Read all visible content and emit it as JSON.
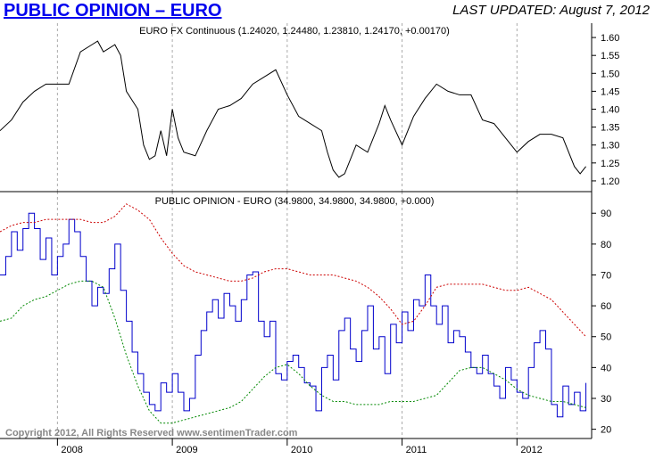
{
  "header": {
    "title": "PUBLIC OPINION – EURO",
    "last_updated": "LAST UPDATED:  August 7, 2012"
  },
  "footer": {
    "copyright": "Copyright 2012, All Rights Reserved  www.sentimenTrader.com"
  },
  "colors": {
    "price_line": "#000000",
    "opinion_line": "#0000cc",
    "upper_band": "#cc0000",
    "lower_band": "#008800",
    "grid": "#aaaaaa"
  },
  "chart_data": [
    {
      "type": "line",
      "title": "EURO FX Continuous (1.24020, 1.24480, 1.23810, 1.24170, +0.00170)",
      "ylim": [
        1.17,
        1.64
      ],
      "yticks": [
        "1.20",
        "1.25",
        "1.30",
        "1.35",
        "1.40",
        "1.45",
        "1.50",
        "1.55",
        "1.60"
      ],
      "xlim": [
        2007.5,
        2012.65
      ],
      "series": [
        {
          "x": [
            2007.5,
            2007.6,
            2007.7,
            2007.8,
            2007.9,
            2008.0,
            2008.1,
            2008.2,
            2008.3,
            2008.35,
            2008.4,
            2008.5,
            2008.55,
            2008.6,
            2008.7,
            2008.75,
            2008.8,
            2008.85,
            2008.9,
            2008.95,
            2009.0,
            2009.05,
            2009.1,
            2009.2,
            2009.3,
            2009.4,
            2009.5,
            2009.6,
            2009.7,
            2009.8,
            2009.9,
            2010.0,
            2010.1,
            2010.2,
            2010.3,
            2010.35,
            2010.4,
            2010.45,
            2010.5,
            2010.6,
            2010.7,
            2010.8,
            2010.85,
            2010.9,
            2011.0,
            2011.1,
            2011.2,
            2011.3,
            2011.4,
            2011.5,
            2011.6,
            2011.7,
            2011.8,
            2011.9,
            2012.0,
            2012.1,
            2012.2,
            2012.3,
            2012.4,
            2012.5,
            2012.55,
            2012.6
          ],
          "y": [
            1.34,
            1.37,
            1.42,
            1.45,
            1.47,
            1.47,
            1.47,
            1.56,
            1.58,
            1.59,
            1.56,
            1.58,
            1.55,
            1.45,
            1.4,
            1.3,
            1.26,
            1.27,
            1.34,
            1.27,
            1.4,
            1.32,
            1.28,
            1.27,
            1.34,
            1.4,
            1.41,
            1.43,
            1.47,
            1.49,
            1.51,
            1.44,
            1.38,
            1.36,
            1.34,
            1.28,
            1.23,
            1.21,
            1.22,
            1.3,
            1.28,
            1.36,
            1.41,
            1.37,
            1.3,
            1.38,
            1.43,
            1.47,
            1.45,
            1.44,
            1.44,
            1.37,
            1.36,
            1.32,
            1.28,
            1.31,
            1.33,
            1.33,
            1.32,
            1.24,
            1.22,
            1.24
          ]
        }
      ]
    },
    {
      "type": "line",
      "title": "PUBLIC OPINION - EURO (34.9800, 34.9800, 34.9800, +0.000)",
      "ylim": [
        17,
        97
      ],
      "yticks": [
        "20",
        "30",
        "40",
        "50",
        "60",
        "70",
        "80",
        "90"
      ],
      "xlim": [
        2007.5,
        2012.65
      ],
      "xticks": [
        "2008",
        "2009",
        "2010",
        "2011",
        "2012"
      ],
      "series": [
        {
          "x": [
            2007.5,
            2007.55,
            2007.6,
            2007.65,
            2007.7,
            2007.75,
            2007.8,
            2007.85,
            2007.9,
            2007.95,
            2008.0,
            2008.05,
            2008.1,
            2008.15,
            2008.2,
            2008.25,
            2008.3,
            2008.35,
            2008.4,
            2008.45,
            2008.5,
            2008.55,
            2008.6,
            2008.65,
            2008.7,
            2008.75,
            2008.8,
            2008.85,
            2008.9,
            2008.95,
            2009.0,
            2009.05,
            2009.1,
            2009.15,
            2009.2,
            2009.25,
            2009.3,
            2009.35,
            2009.4,
            2009.45,
            2009.5,
            2009.55,
            2009.6,
            2009.65,
            2009.7,
            2009.75,
            2009.8,
            2009.85,
            2009.9,
            2009.95,
            2010.0,
            2010.05,
            2010.1,
            2010.15,
            2010.2,
            2010.25,
            2010.3,
            2010.35,
            2010.4,
            2010.45,
            2010.5,
            2010.55,
            2010.6,
            2010.65,
            2010.7,
            2010.75,
            2010.8,
            2010.85,
            2010.9,
            2010.95,
            2011.0,
            2011.05,
            2011.1,
            2011.15,
            2011.2,
            2011.25,
            2011.3,
            2011.35,
            2011.4,
            2011.45,
            2011.5,
            2011.55,
            2011.6,
            2011.65,
            2011.7,
            2011.75,
            2011.8,
            2011.85,
            2011.9,
            2011.95,
            2012.0,
            2012.05,
            2012.1,
            2012.15,
            2012.2,
            2012.25,
            2012.3,
            2012.35,
            2012.4,
            2012.45,
            2012.5,
            2012.55,
            2012.6
          ],
          "y": [
            70,
            76,
            84,
            78,
            85,
            90,
            85,
            75,
            82,
            70,
            76,
            80,
            88,
            84,
            76,
            68,
            60,
            66,
            64,
            72,
            80,
            65,
            55,
            45,
            38,
            32,
            28,
            26,
            35,
            32,
            38,
            32,
            26,
            30,
            44,
            52,
            58,
            62,
            56,
            64,
            60,
            55,
            62,
            70,
            71,
            55,
            50,
            55,
            38,
            36,
            42,
            44,
            40,
            35,
            34,
            26,
            40,
            44,
            36,
            52,
            56,
            46,
            42,
            52,
            60,
            46,
            50,
            38,
            54,
            48,
            58,
            52,
            62,
            60,
            70,
            60,
            54,
            60,
            48,
            52,
            50,
            45,
            40,
            38,
            44,
            38,
            34,
            30,
            40,
            36,
            32,
            30,
            40,
            48,
            52,
            46,
            28,
            24,
            34,
            28,
            32,
            26,
            35
          ]
        },
        {
          "x": [
            2007.5,
            2007.6,
            2007.7,
            2007.8,
            2007.9,
            2008.0,
            2008.1,
            2008.2,
            2008.3,
            2008.4,
            2008.5,
            2008.6,
            2008.7,
            2008.8,
            2008.9,
            2009.0,
            2009.1,
            2009.2,
            2009.3,
            2009.4,
            2009.5,
            2009.6,
            2009.7,
            2009.8,
            2009.9,
            2010.0,
            2010.1,
            2010.2,
            2010.3,
            2010.4,
            2010.5,
            2010.6,
            2010.7,
            2010.8,
            2010.9,
            2011.0,
            2011.1,
            2011.2,
            2011.3,
            2011.4,
            2011.5,
            2011.6,
            2011.7,
            2011.8,
            2011.9,
            2012.0,
            2012.1,
            2012.2,
            2012.3,
            2012.4,
            2012.5,
            2012.6
          ],
          "y": [
            84,
            86,
            87,
            87,
            88,
            88,
            88,
            88,
            87,
            87,
            89,
            93,
            91,
            88,
            82,
            77,
            73,
            71,
            70,
            69,
            68,
            68,
            69,
            71,
            72,
            72,
            71,
            70,
            70,
            70,
            69,
            68,
            66,
            63,
            59,
            54,
            55,
            60,
            66,
            67,
            67,
            67,
            67,
            66,
            65,
            65,
            66,
            64,
            62,
            58,
            54,
            50
          ]
        },
        {
          "x": [
            2007.5,
            2007.6,
            2007.7,
            2007.8,
            2007.9,
            2008.0,
            2008.1,
            2008.2,
            2008.3,
            2008.4,
            2008.5,
            2008.6,
            2008.7,
            2008.8,
            2008.9,
            2009.0,
            2009.1,
            2009.2,
            2009.3,
            2009.4,
            2009.5,
            2009.6,
            2009.7,
            2009.8,
            2009.9,
            2010.0,
            2010.1,
            2010.2,
            2010.3,
            2010.4,
            2010.5,
            2010.6,
            2010.7,
            2010.8,
            2010.9,
            2011.0,
            2011.1,
            2011.2,
            2011.3,
            2011.4,
            2011.5,
            2011.6,
            2011.7,
            2011.8,
            2011.9,
            2012.0,
            2012.1,
            2012.2,
            2012.3,
            2012.4,
            2012.5,
            2012.6
          ],
          "y": [
            55,
            56,
            60,
            62,
            63,
            65,
            67,
            68,
            68,
            66,
            56,
            44,
            34,
            26,
            22,
            22,
            23,
            24,
            25,
            26,
            27,
            29,
            33,
            37,
            40,
            41,
            38,
            34,
            31,
            29,
            29,
            28,
            28,
            28,
            29,
            29,
            29,
            30,
            31,
            35,
            39,
            40,
            40,
            38,
            36,
            33,
            31,
            30,
            29,
            29,
            28,
            27
          ]
        }
      ]
    }
  ]
}
